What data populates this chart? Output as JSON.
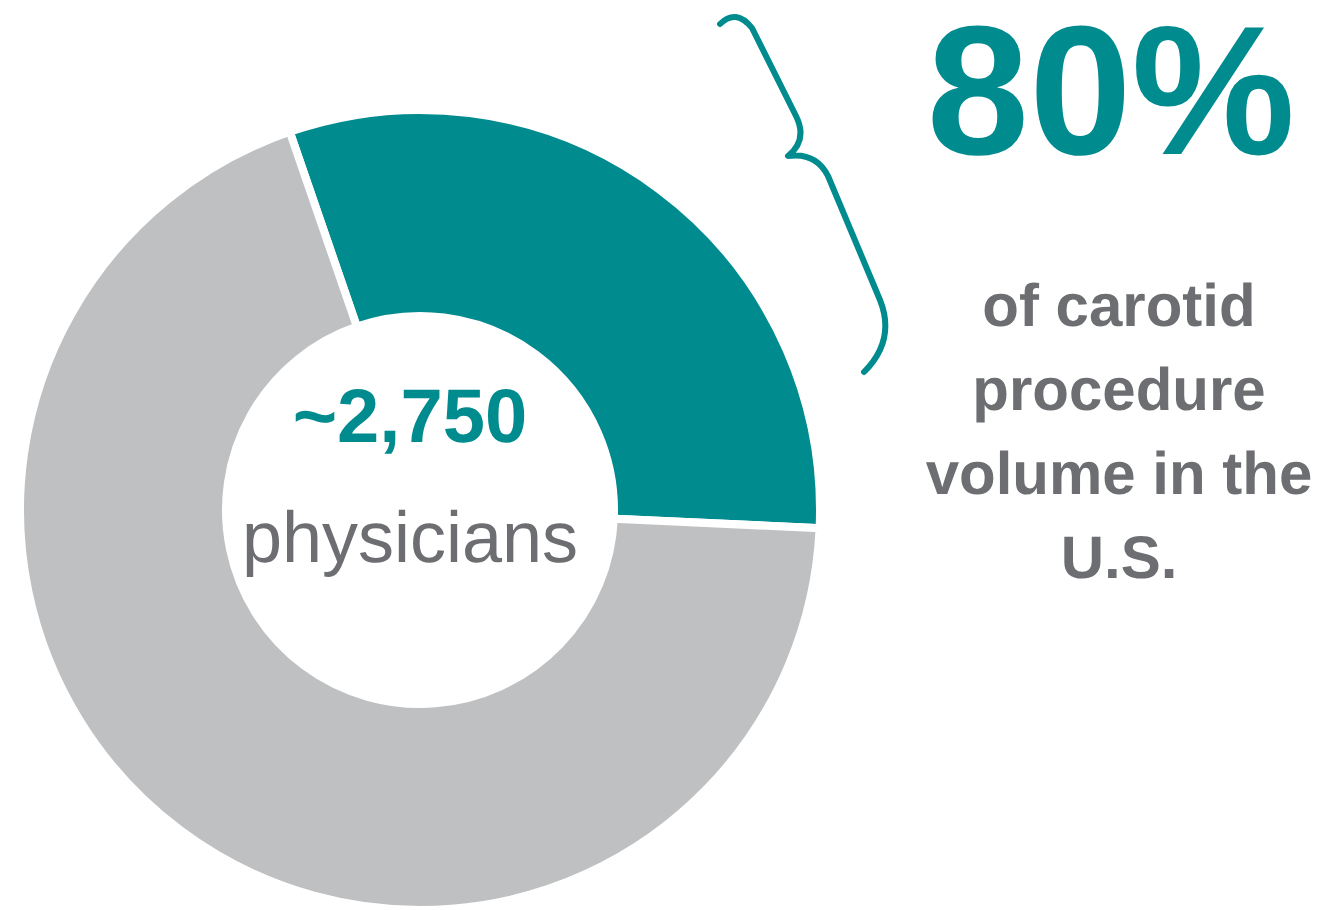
{
  "chart_data": {
    "type": "donut",
    "categories": [
      null,
      null
    ],
    "values": [
      31,
      69
    ],
    "colors": [
      "#008b8f",
      "#bfc0c2"
    ],
    "annotations": [
      "~2,750",
      "physicians",
      "80%",
      "of carotid procedure volume in the U.S."
    ]
  }
}
